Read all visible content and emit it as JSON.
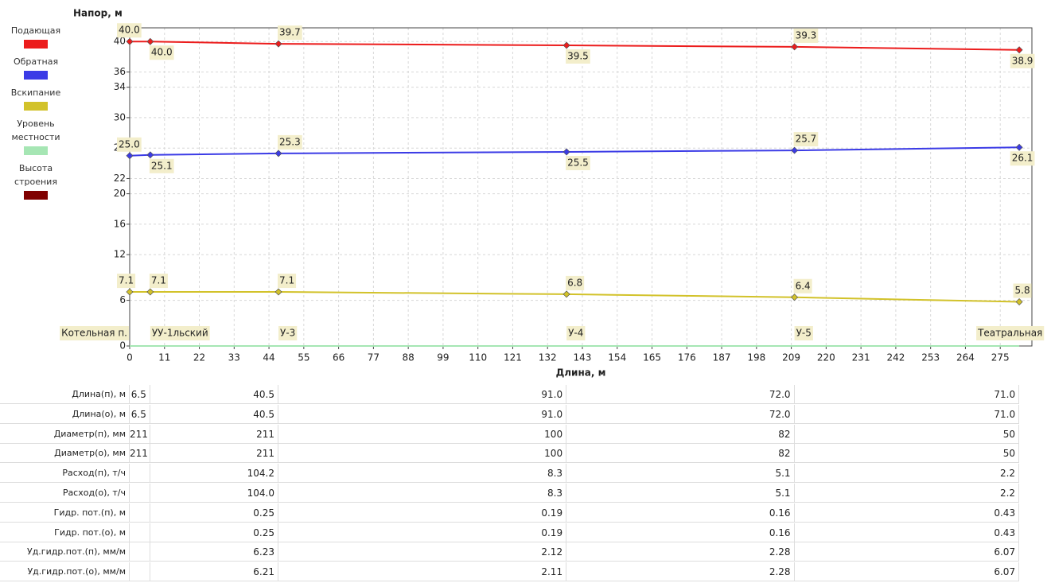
{
  "chart_data": {
    "type": "line",
    "y_label": "Напор, м",
    "x_label": "Длина, м",
    "x": [
      0,
      6.5,
      47,
      138,
      210,
      281
    ],
    "nodes": [
      "Котельная п.",
      "УУ-1льский",
      "У-3",
      "У-4",
      "У-5",
      "Театральная"
    ],
    "series": [
      {
        "name": "Подающая",
        "color": "#ec1c1c",
        "values": [
          40.0,
          40.0,
          39.7,
          39.5,
          39.3,
          38.9
        ],
        "value_labels": [
          "40.0",
          "40.0",
          "39.7",
          "39.5",
          "39.3",
          "38.9"
        ]
      },
      {
        "name": "Обратная",
        "color": "#3b3be6",
        "values": [
          25.0,
          25.1,
          25.3,
          25.5,
          25.7,
          26.1
        ],
        "value_labels": [
          "25.0",
          "25.1",
          "25.3",
          "25.5",
          "25.7",
          "26.1"
        ]
      },
      {
        "name": "Вскипание",
        "color": "#d2c22a",
        "values": [
          7.1,
          7.1,
          7.1,
          6.8,
          6.4,
          5.8
        ],
        "value_labels": [
          "7.1",
          "7.1",
          "7.1",
          "6.8",
          "6.4",
          "5.8"
        ]
      },
      {
        "name": "Уровень местности",
        "color": "#a6e6b4",
        "values": [
          0,
          0,
          0,
          0,
          0,
          0
        ]
      },
      {
        "name": "Высота строения",
        "color": "#800000",
        "values": [
          null,
          null,
          null,
          null,
          null,
          null
        ]
      }
    ],
    "xlim": [
      0,
      285
    ],
    "xticks": [
      0,
      11,
      22,
      33,
      44,
      55,
      66,
      77,
      88,
      99,
      110,
      121,
      132,
      143,
      154,
      165,
      176,
      187,
      198,
      209,
      220,
      231,
      242,
      253,
      264,
      275
    ],
    "ylim": [
      0,
      41.8
    ],
    "yticks": [
      0,
      6,
      12,
      16,
      20,
      22,
      26,
      30,
      34,
      36,
      40
    ],
    "grid": true
  },
  "table": {
    "rows": [
      [
        "Длина(п), м",
        "6.5",
        "40.5",
        "91.0",
        "72.0",
        "71.0"
      ],
      [
        "Длина(о), м",
        "6.5",
        "40.5",
        "91.0",
        "72.0",
        "71.0"
      ],
      [
        "Диаметр(п), мм",
        "211",
        "211",
        "100",
        "82",
        "50"
      ],
      [
        "Диаметр(о), мм",
        "211",
        "211",
        "100",
        "82",
        "50"
      ],
      [
        "Расход(п), т/ч",
        null,
        "104.2",
        "8.3",
        "5.1",
        "2.2"
      ],
      [
        "Расход(о), т/ч",
        null,
        "104.0",
        "8.3",
        "5.1",
        "2.2"
      ],
      [
        "Гидр. пот.(п), м",
        null,
        "0.25",
        "0.19",
        "0.16",
        "0.43"
      ],
      [
        "Гидр. пот.(о), м",
        null,
        "0.25",
        "0.19",
        "0.16",
        "0.43"
      ],
      [
        "Уд.гидр.пот.(п), мм/м",
        null,
        "6.23",
        "2.12",
        "2.28",
        "6.07"
      ],
      [
        "Уд.гидр.пот.(о), мм/м",
        null,
        "6.21",
        "2.11",
        "2.28",
        "6.07"
      ]
    ]
  }
}
